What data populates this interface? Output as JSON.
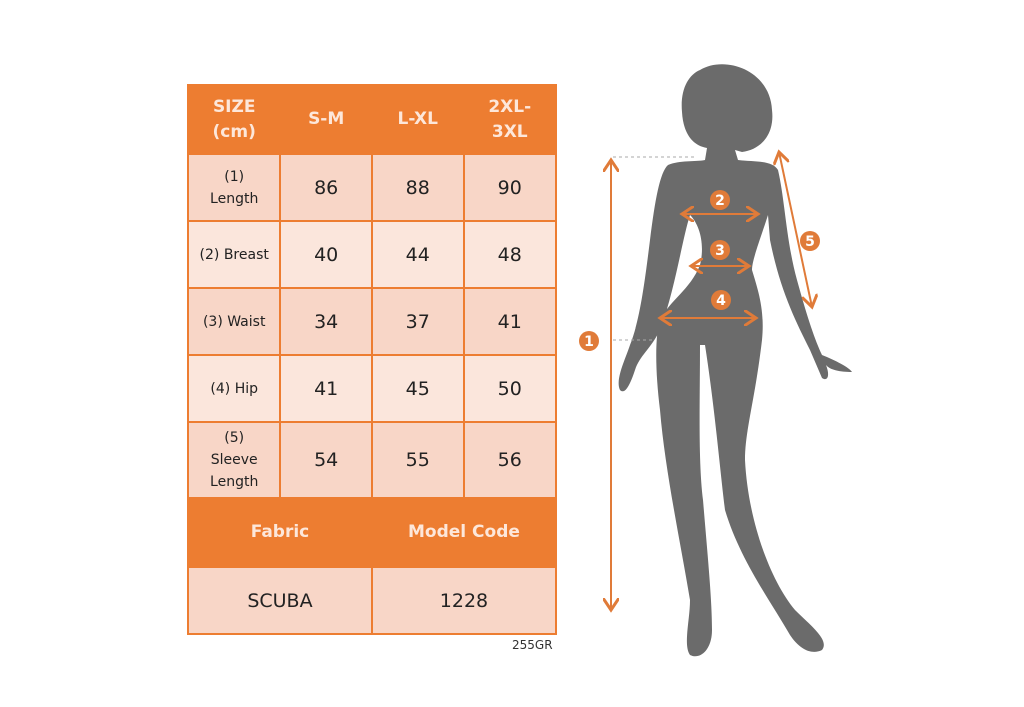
{
  "table": {
    "header": [
      "SIZE (cm)",
      "S-M",
      "L-XL",
      "2XL-3XL"
    ],
    "header_lines": [
      [
        "SIZE",
        "(cm)"
      ],
      [
        "S-M"
      ],
      [
        "L-XL"
      ],
      [
        "2XL-",
        "3XL"
      ]
    ],
    "rows": [
      {
        "label_lines": [
          "(1)",
          "Length"
        ],
        "values": [
          "86",
          "88",
          "90"
        ]
      },
      {
        "label_lines": [
          "(2) Breast"
        ],
        "values": [
          "40",
          "44",
          "48"
        ]
      },
      {
        "label_lines": [
          "(3) Waist"
        ],
        "values": [
          "34",
          "37",
          "41"
        ]
      },
      {
        "label_lines": [
          "(4) Hip"
        ],
        "values": [
          "41",
          "45",
          "50"
        ]
      },
      {
        "label_lines": [
          "(5)",
          "Sleeve",
          "Length"
        ],
        "values": [
          "54",
          "55",
          "56"
        ]
      }
    ],
    "footer_headers": [
      "Fabric",
      "Model Code"
    ],
    "footer_values": [
      "SCUBA",
      "1228"
    ]
  },
  "note": "255GR",
  "figure": {
    "markers": [
      "1",
      "2",
      "3",
      "4",
      "5"
    ]
  },
  "colors": {
    "accent": "#ED7D31",
    "row_dark": "#F8D6C7",
    "row_light": "#FBE6DC",
    "silhouette": "#6b6b6b"
  }
}
